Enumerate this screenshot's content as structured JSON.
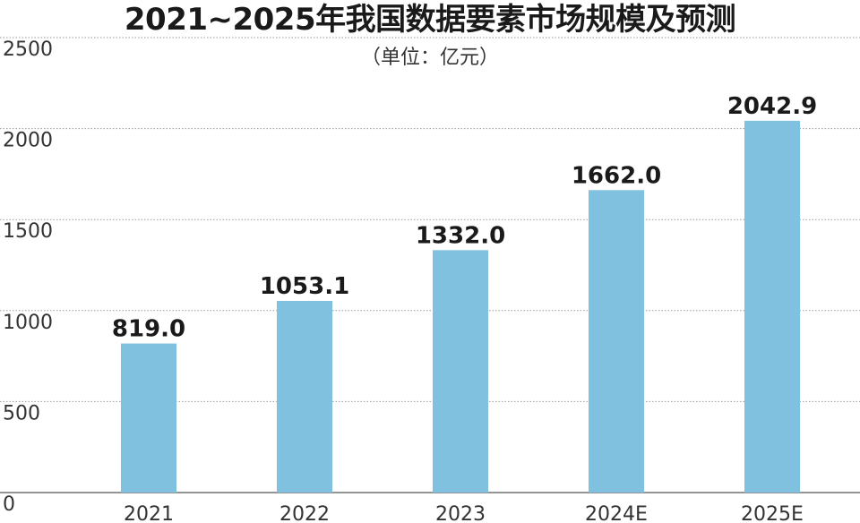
{
  "chart_data": {
    "type": "bar",
    "title": "2021~2025年我国数据要素市场规模及预测",
    "subtitle": "（单位：亿元）",
    "categories": [
      "2021",
      "2022",
      "2023",
      "2024E",
      "2025E"
    ],
    "values": [
      819.0,
      1053.1,
      1332.0,
      1662.0,
      2042.9
    ],
    "data_labels": [
      "819.0",
      "1053.1",
      "1332.0",
      "1662.0",
      "2042.9"
    ],
    "y_ticks": [
      0,
      500,
      1000,
      1500,
      2000,
      2500
    ],
    "ylim": [
      0,
      2500
    ],
    "grid": true,
    "bar_color": "#7fc1de",
    "grid_color": "#9a9a9a"
  }
}
